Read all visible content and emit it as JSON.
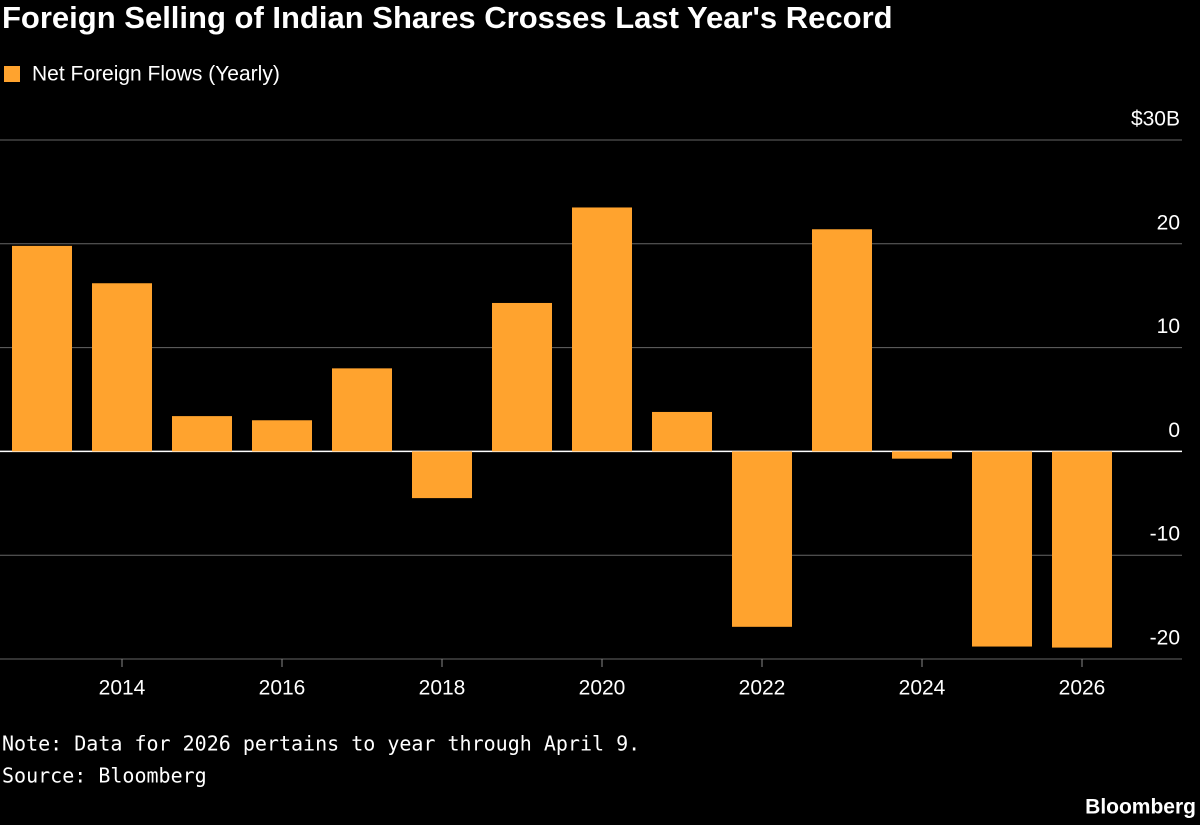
{
  "chart_data": {
    "type": "bar",
    "title": "Foreign Selling of Indian Shares Crosses Last Year's Record",
    "series": [
      {
        "name": "Net Foreign Flows (Yearly)",
        "color": "#ffa32e",
        "values": [
          19.8,
          16.2,
          3.4,
          3.0,
          8.0,
          -4.5,
          14.3,
          23.5,
          3.8,
          -16.9,
          21.4,
          -0.7,
          -18.8,
          -18.9
        ]
      }
    ],
    "x": [
      2013,
      2014,
      2015,
      2016,
      2017,
      2018,
      2019,
      2020,
      2021,
      2022,
      2023,
      2024,
      2025,
      2026
    ],
    "xlim": [
      2012.5,
      2026.5
    ],
    "xticks": [
      2014,
      2016,
      2018,
      2020,
      2022,
      2024,
      2026
    ],
    "ylim": [
      -20,
      30
    ],
    "yticks": [
      {
        "value": 30,
        "label": "$30B"
      },
      20,
      10,
      0,
      -10,
      -20
    ],
    "grid": true,
    "note": "Note: Data for 2026 pertains to year through April 9.",
    "source": "Source: Bloomberg",
    "brand": "Bloomberg"
  }
}
